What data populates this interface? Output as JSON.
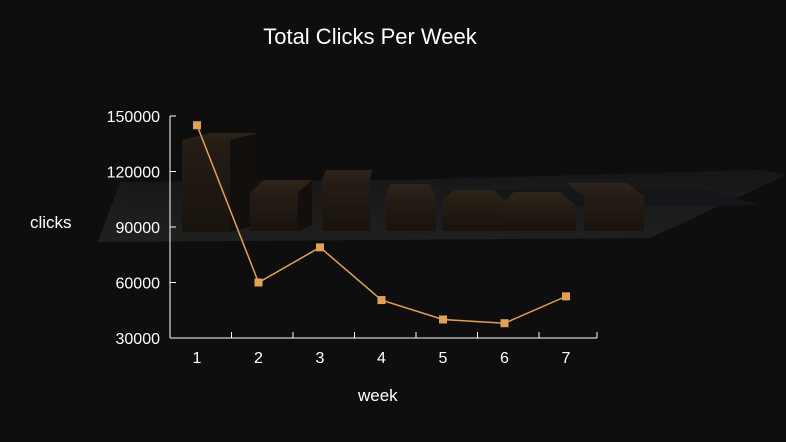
{
  "chart_data": {
    "type": "line",
    "title": "Total Clicks Per Week",
    "xlabel": "week",
    "ylabel": "clicks",
    "x": [
      1,
      2,
      3,
      4,
      5,
      6,
      7
    ],
    "series": [
      {
        "values": [
          145000,
          60000,
          79000,
          50500,
          40000,
          38000,
          52500
        ]
      }
    ],
    "ylim": [
      30000,
      150000
    ],
    "yticks": [
      30000,
      60000,
      90000,
      120000,
      150000
    ],
    "xticks": [
      1,
      2,
      3,
      4,
      5,
      6,
      7
    ],
    "grid": false,
    "colors": {
      "line": "#e0a252",
      "marker": "#e0a252",
      "axis": "#ffffff",
      "background": "#0e0e0e"
    }
  }
}
